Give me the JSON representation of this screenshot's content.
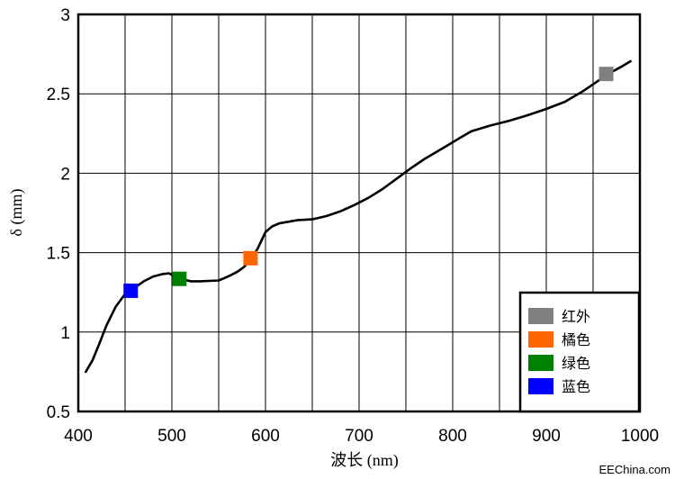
{
  "chart_data": {
    "type": "line",
    "xlabel": "波长 (nm)",
    "ylabel": "δ (mm)",
    "xlim": [
      400,
      1000
    ],
    "ylim": [
      0.5,
      3
    ],
    "xticks": [
      400,
      500,
      600,
      700,
      800,
      900,
      1000
    ],
    "yticks": [
      0.5,
      1,
      1.5,
      2,
      2.5,
      3
    ],
    "ytick_labels": [
      "0.5",
      "1",
      "1.5",
      "2",
      "2.5",
      "3"
    ],
    "grid": true,
    "line_color": "#000000",
    "series": [
      {
        "x": [
          408,
          415,
          422,
          430,
          440,
          450,
          458,
          470,
          480,
          490,
          497,
          503,
          510,
          520,
          530,
          550,
          560,
          570,
          577,
          585,
          592,
          600,
          607,
          615,
          625,
          635,
          650,
          665,
          680,
          695,
          710,
          725,
          740,
          755,
          770,
          790,
          810,
          820,
          840,
          860,
          880,
          900,
          920,
          940,
          955,
          966,
          980,
          990
        ],
        "y": [
          0.75,
          0.82,
          0.92,
          1.04,
          1.16,
          1.24,
          1.27,
          1.32,
          1.35,
          1.365,
          1.37,
          1.35,
          1.335,
          1.32,
          1.32,
          1.325,
          1.35,
          1.38,
          1.41,
          1.46,
          1.53,
          1.63,
          1.665,
          1.685,
          1.695,
          1.705,
          1.71,
          1.73,
          1.76,
          1.8,
          1.845,
          1.9,
          1.965,
          2.03,
          2.09,
          2.16,
          2.23,
          2.265,
          2.3,
          2.33,
          2.365,
          2.405,
          2.45,
          2.52,
          2.58,
          2.625,
          2.67,
          2.705
        ]
      }
    ],
    "markers": [
      {
        "name": "蓝色",
        "x": 456,
        "y": 1.26,
        "color": "#0000ff"
      },
      {
        "name": "绿色",
        "x": 508,
        "y": 1.335,
        "color": "#008000"
      },
      {
        "name": "橘色",
        "x": 584,
        "y": 1.465,
        "color": "#ff6600"
      },
      {
        "name": "红外",
        "x": 964,
        "y": 2.625,
        "color": "#808080"
      }
    ],
    "legend": {
      "position": "bottom-right",
      "entries": [
        {
          "label": "红外",
          "color": "#808080"
        },
        {
          "label": "橘色",
          "color": "#ff6600"
        },
        {
          "label": "绿色",
          "color": "#008000"
        },
        {
          "label": "蓝色",
          "color": "#0000ff"
        }
      ]
    }
  },
  "watermark": "EEChina.com"
}
